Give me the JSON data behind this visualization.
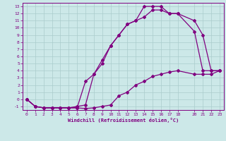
{
  "title": "",
  "xlabel": "Windchill (Refroidissement éolien,°C)",
  "bg_color": "#cce8e8",
  "line_color": "#800080",
  "grid_color": "#aacccc",
  "xlim": [
    -0.5,
    23.5
  ],
  "ylim": [
    -1.5,
    13.5
  ],
  "xticks": [
    0,
    1,
    2,
    3,
    4,
    5,
    6,
    7,
    8,
    9,
    10,
    11,
    12,
    13,
    14,
    15,
    16,
    17,
    18,
    20,
    21,
    22,
    23
  ],
  "yticks": [
    -1,
    0,
    1,
    2,
    3,
    4,
    5,
    6,
    7,
    8,
    9,
    10,
    11,
    12,
    13
  ],
  "line1_x": [
    0,
    1,
    2,
    3,
    4,
    5,
    6,
    7,
    8,
    9,
    10,
    11,
    12,
    13,
    14,
    15,
    16,
    17,
    18,
    20,
    21,
    22,
    23
  ],
  "line1_y": [
    0,
    -1,
    -1.2,
    -1.2,
    -1.2,
    -1.2,
    -1.2,
    -1.3,
    -1.2,
    -1.0,
    -0.8,
    0.5,
    1.0,
    2.0,
    2.5,
    3.2,
    3.5,
    3.8,
    4.0,
    3.5,
    3.5,
    3.5,
    4.0
  ],
  "line2_x": [
    0,
    1,
    2,
    3,
    4,
    5,
    6,
    7,
    8,
    9,
    10,
    11,
    12,
    13,
    14,
    15,
    16,
    17,
    18,
    20,
    21,
    22,
    23
  ],
  "line2_y": [
    0,
    -1,
    -1.2,
    -1.2,
    -1.2,
    -1.2,
    -1.2,
    2.5,
    3.5,
    5.5,
    7.5,
    9.0,
    10.5,
    11.0,
    11.5,
    12.5,
    12.5,
    12.0,
    12.0,
    11.0,
    9.0,
    4.0,
    4.0
  ],
  "line3_x": [
    0,
    1,
    2,
    3,
    4,
    5,
    6,
    7,
    8,
    9,
    10,
    11,
    12,
    13,
    14,
    15,
    16,
    17,
    18,
    20,
    21,
    22,
    23
  ],
  "line3_y": [
    0,
    -1,
    -1.2,
    -1.2,
    -1.2,
    -1.2,
    -1.0,
    -0.8,
    3.5,
    5.0,
    7.5,
    9.0,
    10.5,
    11.0,
    13.0,
    13.0,
    13.0,
    12.0,
    12.0,
    9.5,
    4.0,
    4.0,
    4.0
  ]
}
